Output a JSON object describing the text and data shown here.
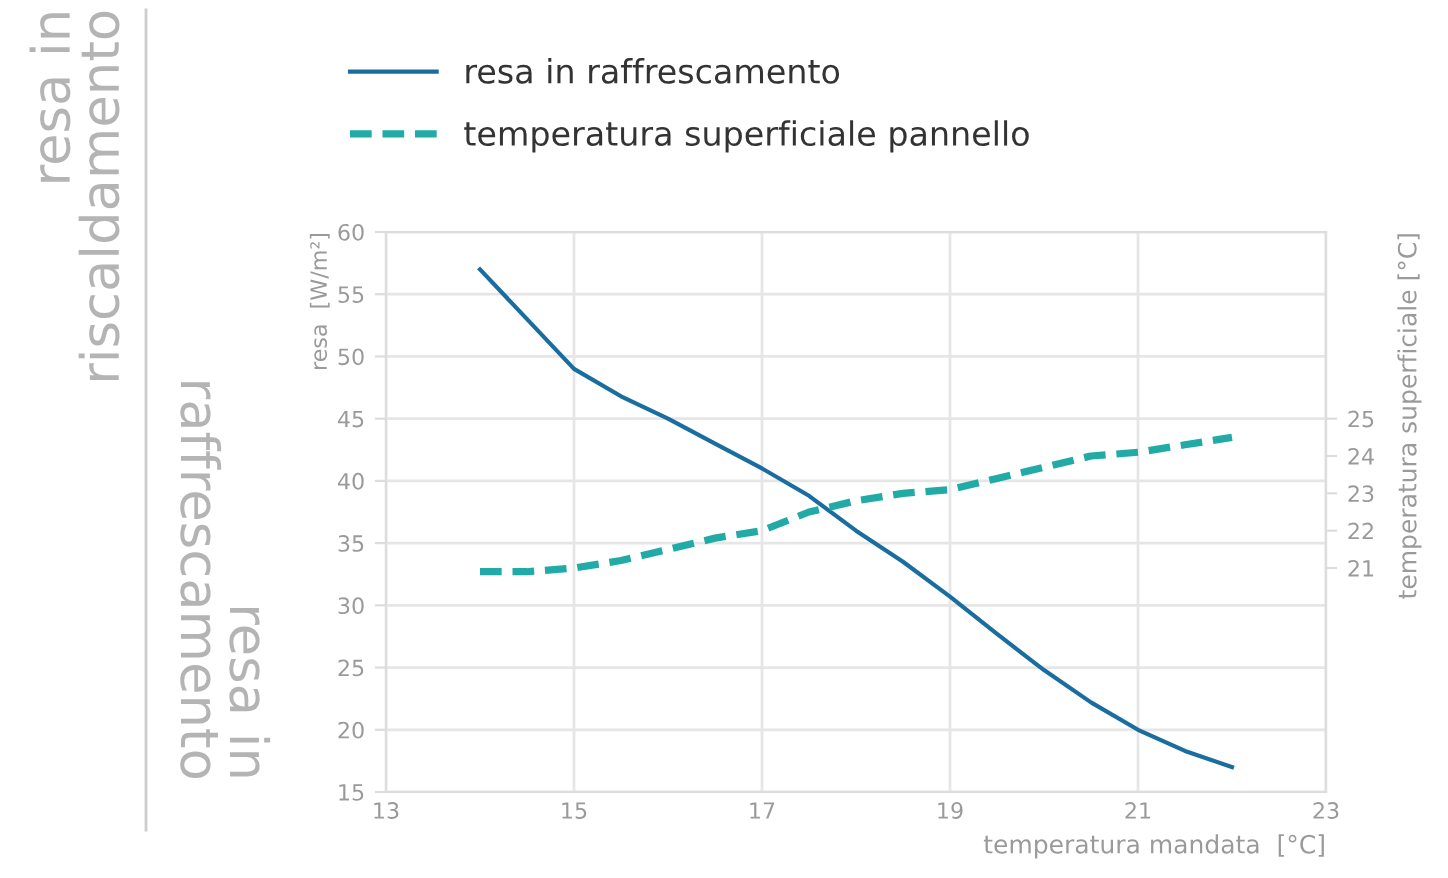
{
  "chart_data": {
    "type": "line",
    "xlabel": "temperatura mandata  [°C]",
    "ylabel": "resa  [W/m²]",
    "y2label": "temperatura superficiale [°C]",
    "annotations": [
      "resa in\nriscaldamento",
      "resa in\nraffrescamento"
    ],
    "series": [
      {
        "name": "resa in raffrescamento",
        "color": "#1a6e9f",
        "line_style": "solid",
        "x": [
          14,
          14.5,
          15,
          15.5,
          16,
          16.5,
          17,
          17.5,
          18,
          18.5,
          19,
          19.5,
          20,
          20.5,
          21,
          21.5,
          22
        ],
        "values": [
          57,
          53,
          49,
          46.8,
          45,
          43,
          41,
          38.8,
          36,
          33.5,
          30.7,
          27.7,
          24.8,
          22.2,
          20,
          18.3,
          17
        ]
      },
      {
        "name": "temperatura superficiale pannello",
        "color": "#22aaa6",
        "line_style": "dashed",
        "axis": "y2",
        "x": [
          14,
          14.5,
          15,
          15.5,
          16,
          16.5,
          17,
          17.5,
          18,
          18.5,
          19,
          19.5,
          20,
          20.5,
          21,
          21.5,
          22
        ],
        "values": [
          20.9,
          20.9,
          21.0,
          21.2,
          21.5,
          21.8,
          22.0,
          22.5,
          22.8,
          23.0,
          23.1,
          23.4,
          23.7,
          24.0,
          24.1,
          24.3,
          24.5
        ]
      }
    ],
    "xlim": [
      13,
      23
    ],
    "xticks": [
      13,
      15,
      17,
      19,
      21,
      23
    ],
    "ylim": [
      15,
      60
    ],
    "yticks": [
      15,
      20,
      25,
      30,
      35,
      40,
      45,
      50,
      55,
      60
    ],
    "y2lim": [
      15,
      30
    ],
    "y2ticks": [
      21,
      22,
      23,
      24,
      25
    ],
    "grid": true,
    "legend": "top left",
    "marker": "none"
  }
}
